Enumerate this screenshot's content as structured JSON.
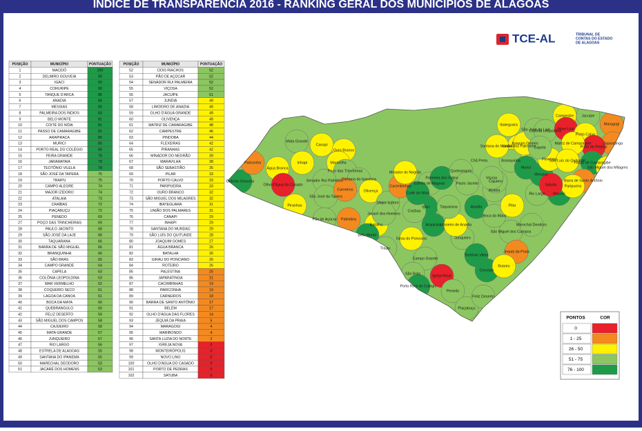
{
  "header": {
    "title": "ÍNDICE DE TRANSPARÊNCIA 2016 - RANKING GERAL DOS MUNICÍPIOS DE ALAGOAS"
  },
  "logo": {
    "name": "TCE-AL",
    "lines": [
      "TRIBUNAL DE",
      "CONTAS DO ESTADO",
      "DE ALAGOAS"
    ]
  },
  "tables": [
    {
      "columns": [
        "POSIÇÃO",
        "MUNICÍPIO",
        "PONTUAÇÃO"
      ],
      "rows": [
        [
          1,
          "MACEIÓ",
          100
        ],
        [
          2,
          "DELMIRO GOUVEIA",
          99
        ],
        [
          3,
          "IGACI",
          93
        ],
        [
          4,
          "CORURIPE",
          90
        ],
        [
          5,
          "TANQUE D'ARCA",
          86
        ],
        [
          6,
          "ANADIA",
          84
        ],
        [
          7,
          "MESSIAS",
          83
        ],
        [
          8,
          "PALMEIRA DOS ÍNDIOS",
          83
        ],
        [
          9,
          "BELO MONTE",
          81
        ],
        [
          10,
          "COITÉ DO NÓIA",
          81
        ],
        [
          11,
          "PASSO DE CAMARAGIBE",
          81
        ],
        [
          12,
          "ARAPIRACA",
          80
        ],
        [
          13,
          "MURICI",
          80
        ],
        [
          14,
          "PORTO REAL DO COLÉGIO",
          80
        ],
        [
          15,
          "FEIRA GRANDE",
          78
        ],
        [
          16,
          "JARAMATAIA",
          78
        ],
        [
          17,
          "TEOTÔNIO VILELA",
          78
        ],
        [
          18,
          "SÃO JOSÉ DA TAPERA",
          75
        ],
        [
          19,
          "TRAIPU",
          75
        ],
        [
          20,
          "CAMPO ALEGRE",
          74
        ],
        [
          21,
          "MAJOR IZIDORO",
          74
        ],
        [
          22,
          "ATALAIA",
          73
        ],
        [
          23,
          "CRAÍBAS",
          72
        ],
        [
          24,
          "PIAÇABUÇU",
          72
        ],
        [
          25,
          "PENEDO",
          69
        ],
        [
          27,
          "POÇO DAS TRINCHEIRAS",
          69
        ],
        [
          28,
          "PAULO JACINTO",
          68
        ],
        [
          29,
          "SÃO JOSÉ DA LAJE",
          68
        ],
        [
          30,
          "TAQUARANA",
          66
        ],
        [
          31,
          "BARRA DE SÃO MIGUEL",
          66
        ],
        [
          32,
          "BRANQUINHA",
          66
        ],
        [
          33,
          "SÃO BRÁS",
          65
        ],
        [
          34,
          "CAMPO GRANDE",
          64
        ],
        [
          35,
          "CAPELA",
          63
        ],
        [
          36,
          "COLÔNIA LEOPOLDINA",
          63
        ],
        [
          37,
          "MAR VERMELHO",
          62
        ],
        [
          38,
          "COQUEIRO SECO",
          61
        ],
        [
          39,
          "LAGOA DA CANOA",
          61
        ],
        [
          40,
          "BOCA DA MATA",
          60
        ],
        [
          41,
          "QUEBRANGULO",
          60
        ],
        [
          42,
          "FELIZ DESERTO",
          59
        ],
        [
          43,
          "SÃO MIGUEL DOS CAMPOS",
          58
        ],
        [
          44,
          "CAJUEIRO",
          58
        ],
        [
          45,
          "MATA GRANDE",
          57
        ],
        [
          46,
          "JUNQUEIRO",
          57
        ],
        [
          47,
          "RIO LARGO",
          56
        ],
        [
          48,
          "ESTRELA DE ALAGOAS",
          55
        ],
        [
          49,
          "SANTANA DO IPANEMA",
          55
        ],
        [
          50,
          "MARECHAL DEODORO",
          53
        ],
        [
          51,
          "JACARÉ DOS HOMENS",
          53
        ]
      ]
    },
    {
      "columns": [
        "POSIÇÃO",
        "MUNICÍPIO",
        "PONTUAÇÃO"
      ],
      "rows": [
        [
          52,
          "DOIS RIACHOS",
          52
        ],
        [
          53,
          "PÃO DE AÇÚCAR",
          52
        ],
        [
          54,
          "SENADOR RUI PALMEIRA",
          52
        ],
        [
          55,
          "VIÇOSA",
          52
        ],
        [
          56,
          "JACUÍPE",
          51
        ],
        [
          57,
          "JUNDIÁ",
          49
        ],
        [
          58,
          "LIMOEIRO DE ANADIA",
          49
        ],
        [
          59,
          "OLHO D'ÁGUA GRANDE",
          49
        ],
        [
          60,
          "OLIVENÇA",
          49
        ],
        [
          61,
          "MATRIZ DE CAMARAGIBE",
          48
        ],
        [
          62,
          "CAMPESTRE",
          46
        ],
        [
          63,
          "PINDOBA",
          44
        ],
        [
          64,
          "FLEXEIRAS",
          42
        ],
        [
          65,
          "PIRANHAS",
          42
        ],
        [
          66,
          "MINADOR DO NEGRÃO",
          39
        ],
        [
          67,
          "MARAVILHA",
          38
        ],
        [
          68,
          "SÃO SEBASTIÃO",
          35
        ],
        [
          69,
          "PILAR",
          33
        ],
        [
          70,
          "PORTO CALVO",
          33
        ],
        [
          71,
          "PARIPUEIRA",
          33
        ],
        [
          72,
          "OURO BRANCO",
          32
        ],
        [
          73,
          "SÃO MIGUEL DOS MILAGRES",
          32
        ],
        [
          74,
          "IBATEGUARA",
          31
        ],
        [
          75,
          "UNIÃO DOS PALMARES",
          31
        ],
        [
          76,
          "CANAPI",
          29
        ],
        [
          77,
          "INHAPI",
          29
        ],
        [
          78,
          "SANTANA DO MUNDAÚ",
          29
        ],
        [
          79,
          "SÃO LUÍS DO QUITUNDE",
          28
        ],
        [
          80,
          "JOAQUIM GOMES",
          27
        ],
        [
          81,
          "ÁGUA BRANCA",
          26
        ],
        [
          82,
          "BATALHA",
          26
        ],
        [
          83,
          "GIRAU DO PONCIANO",
          26
        ],
        [
          84,
          "ROTEIRO",
          26
        ],
        [
          85,
          "PALESTINA",
          25
        ],
        [
          86,
          "JAPARATINGA",
          21
        ],
        [
          87,
          "CACIMBINHAS",
          19
        ],
        [
          88,
          "PARICONHA",
          19
        ],
        [
          89,
          "CARNEIROS",
          18
        ],
        [
          90,
          "BARRA DE SANTO ANTÔNIO",
          17
        ],
        [
          91,
          "BELÉM",
          17
        ],
        [
          92,
          "OLHO D'ÁGUA DAS FLORES",
          14
        ],
        [
          93,
          "JEQUIÁ DA PRAIA",
          5
        ],
        [
          94,
          "MARAGOGI",
          4
        ],
        [
          95,
          "MARIBONDO",
          4
        ],
        [
          96,
          "SANTA LUZIA DO NORTE",
          2
        ],
        [
          97,
          "IGREJA NOVA",
          0
        ],
        [
          98,
          "MONTEIRÓPOLIS",
          0
        ],
        [
          99,
          "NOVO LINO",
          0
        ],
        [
          100,
          "OLHO D'ÁGUA DO CASADO",
          0
        ],
        [
          101,
          "PORTO DE PEDRAS",
          0
        ],
        [
          102,
          "SATUBA",
          0
        ]
      ]
    }
  ],
  "legend": {
    "columns": [
      "PONTOS",
      "COR"
    ],
    "items": [
      {
        "label": "0",
        "color": "#e8212a"
      },
      {
        "label": "1 - 25",
        "color": "#f48a1f"
      },
      {
        "label": "26 - 50",
        "color": "#fff200"
      },
      {
        "label": "51 - 75",
        "color": "#8cc660"
      },
      {
        "label": "76 - 100",
        "color": "#1e9b48"
      }
    ]
  },
  "map": {
    "labels": [
      "Delmiro Gouveia",
      "Água Branca",
      "Pariconha",
      "Mata Grande",
      "Canapi",
      "Inhapi",
      "Olho d'Água do Casado",
      "Piranhas",
      "Ouro Branco",
      "Maravilha",
      "Poço das Trincheiras",
      "Senador Rui Palmeira",
      "Santana do Ipanema",
      "São José da Tapera",
      "Carneiros",
      "Olivença",
      "Pão de Açúcar",
      "Palestina",
      "Major Izidoro",
      "Batalha",
      "Belo Monte",
      "Jacaré dos Homens",
      "Cacimbinhas",
      "Minador do Negrão",
      "Estrela de Alagoas",
      "Palmeira dos Índios",
      "Igaci",
      "Craíbas",
      "Arapiraca",
      "Girau do Ponciano",
      "Traipu",
      "Campo Grande",
      "São Brás",
      "Porto Real do Colégio",
      "Igreja Nova",
      "Penedo",
      "Piaçabuçu",
      "Feliz Deserto",
      "Coruripe",
      "Junqueiro",
      "Teotônio Vilela",
      "São Miguel dos Campos",
      "Limoeiro de Anadia",
      "Anadia",
      "Boca da Mata",
      "Marechal Deodoro",
      "Maceió",
      "Rio Largo",
      "Pilar",
      "Atalaia",
      "Quebrangulo",
      "Paulo Jacinto",
      "Cajueiro",
      "União dos Palmares",
      "Branquinha",
      "Murici",
      "Messias",
      "Flexeiras",
      "Joaquim Gomes",
      "Ibateguara",
      "Santana do Mundaú",
      "Chã Preta",
      "São José da Laje",
      "Colônia Leopoldina",
      "Campestre",
      "Jacuípe",
      "Novo Lino",
      "Maragogi",
      "Japaratinga",
      "Porto Calvo",
      "Porto de Pedras",
      "Matriz de Camaragibe",
      "São Luís do Quitunde",
      "Passo de Camaragibe",
      "São Miguel dos Milagres",
      "Barra de Santo Antônio",
      "Paripueira",
      "Jequiá da Praia",
      "Roteiro",
      "Taquarana",
      "Coité do Nóia",
      "Viçosa",
      "Capela",
      "Satuba"
    ]
  }
}
